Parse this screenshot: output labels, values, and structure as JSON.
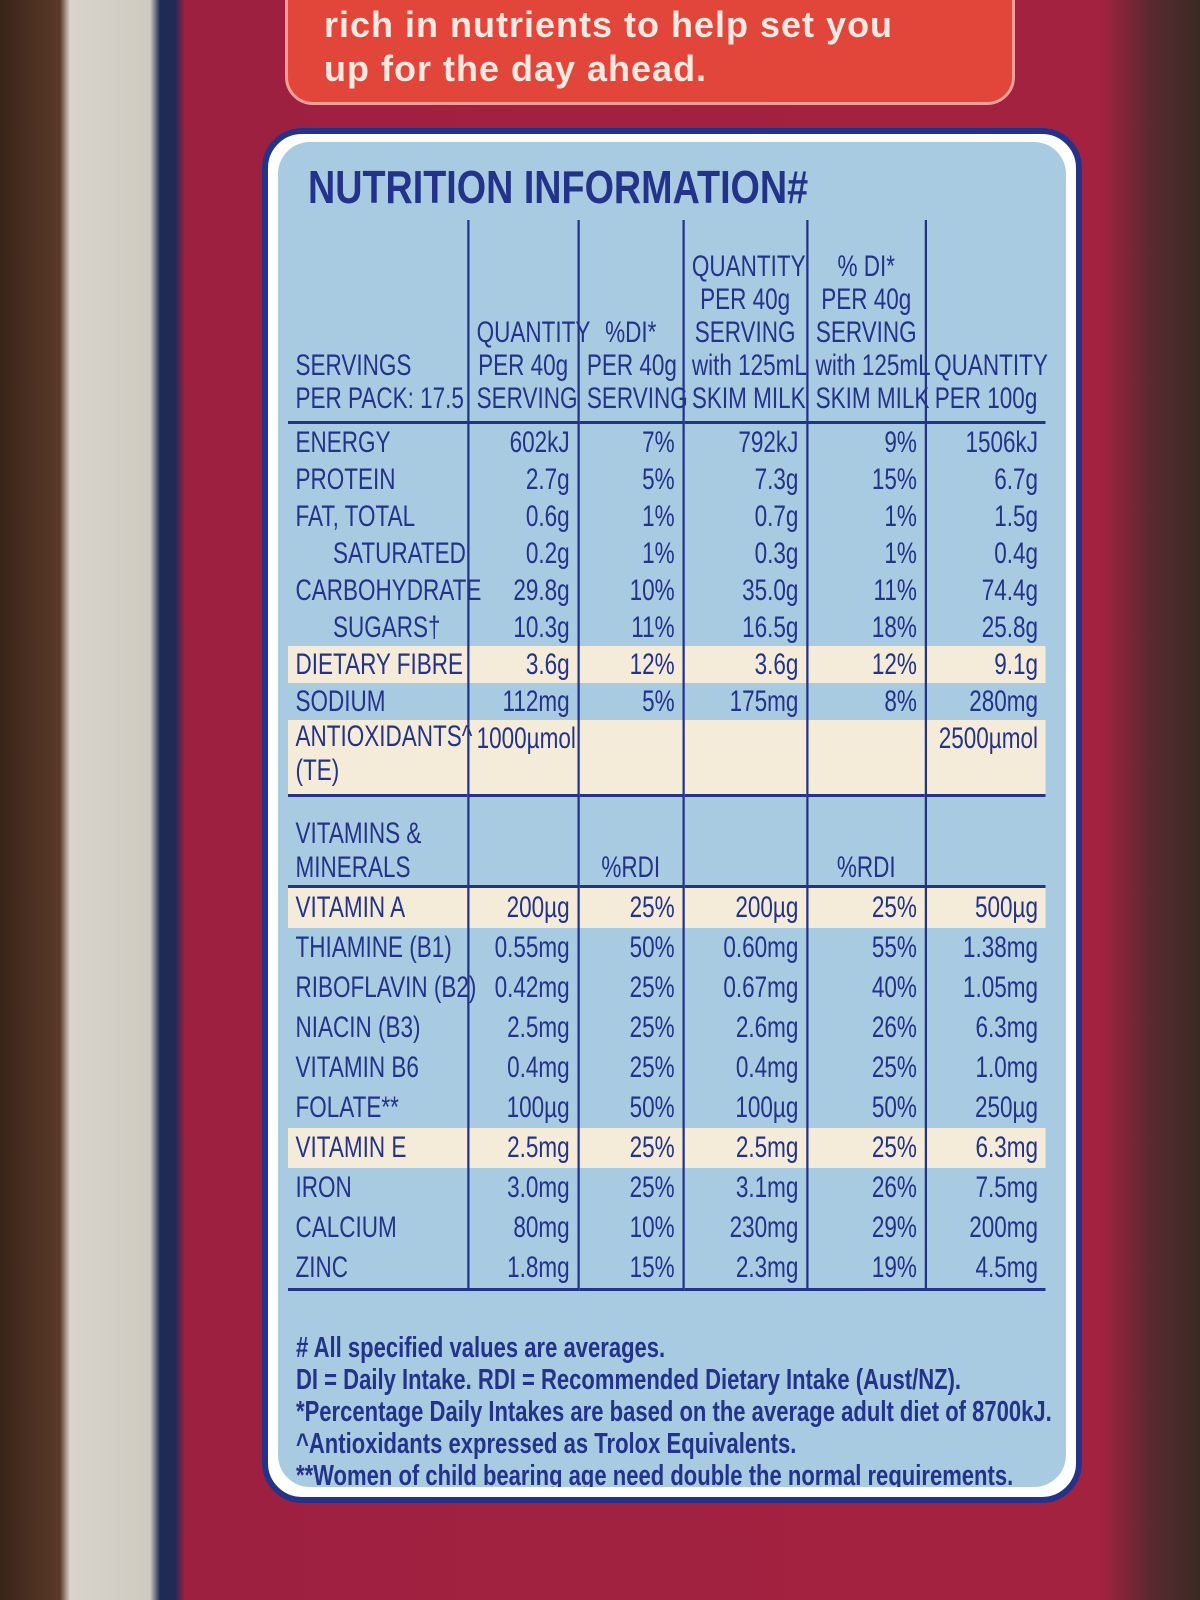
{
  "banner": {
    "lines": [
      "rich in nutrients to help set you",
      "up for the day ahead."
    ]
  },
  "title": "NUTRITION INFORMATION#",
  "table": {
    "header": [
      [
        "SERVINGS",
        "PER PACK: 17.5"
      ],
      [
        "QUANTITY",
        "PER 40g",
        "SERVING"
      ],
      [
        "%DI*",
        "PER 40g",
        "SERVING"
      ],
      [
        "QUANTITY",
        "PER 40g",
        "SERVING",
        "with 125mL",
        "SKIM MILK"
      ],
      [
        "% DI*",
        "PER 40g",
        "SERVING",
        "with 125mL",
        "SKIM MILK"
      ],
      [
        "QUANTITY",
        "PER 100g"
      ]
    ],
    "nutrients": [
      [
        "ENERGY",
        "602kJ",
        "7%",
        "792kJ",
        "9%",
        "1506kJ"
      ],
      [
        "PROTEIN",
        "2.7g",
        "5%",
        "7.3g",
        "15%",
        "6.7g"
      ],
      [
        "FAT, TOTAL",
        "0.6g",
        "1%",
        "0.7g",
        "1%",
        "1.5g"
      ],
      [
        "SATURATED",
        "0.2g",
        "1%",
        "0.3g",
        "1%",
        "0.4g"
      ],
      [
        "CARBOHYDRATE",
        "29.8g",
        "10%",
        "35.0g",
        "11%",
        "74.4g"
      ],
      [
        "SUGARS†",
        "10.3g",
        "11%",
        "16.5g",
        "18%",
        "25.8g"
      ],
      [
        "DIETARY FIBRE",
        "3.6g",
        "12%",
        "3.6g",
        "12%",
        "9.1g"
      ],
      [
        "SODIUM",
        "112mg",
        "5%",
        "175mg",
        "8%",
        "280mg"
      ],
      [
        "ANTIOXIDANTS^ (TE)",
        "1000µmol",
        null,
        null,
        null,
        "2500µmol"
      ]
    ],
    "vitamins_header": [
      "VITAMINS & MINERALS",
      null,
      "%RDI",
      null,
      "%RDI",
      null
    ],
    "vitamins": [
      [
        "VITAMIN A",
        "200µg",
        "25%",
        "200µg",
        "25%",
        "500µg"
      ],
      [
        "THIAMINE (B1)",
        "0.55mg",
        "50%",
        "0.60mg",
        "55%",
        "1.38mg"
      ],
      [
        "RIBOFLAVIN (B2)",
        "0.42mg",
        "25%",
        "0.67mg",
        "40%",
        "1.05mg"
      ],
      [
        "NIACIN (B3)",
        "2.5mg",
        "25%",
        "2.6mg",
        "26%",
        "6.3mg"
      ],
      [
        "VITAMIN B6",
        "0.4mg",
        "25%",
        "0.4mg",
        "25%",
        "1.0mg"
      ],
      [
        "FOLATE**",
        "100µg",
        "50%",
        "100µg",
        "50%",
        "250µg"
      ],
      [
        "VITAMIN E",
        "2.5mg",
        "25%",
        "2.5mg",
        "25%",
        "6.3mg"
      ],
      [
        "IRON",
        "3.0mg",
        "25%",
        "3.1mg",
        "26%",
        "7.5mg"
      ],
      [
        "CALCIUM",
        "80mg",
        "10%",
        "230mg",
        "29%",
        "200mg"
      ],
      [
        "ZINC",
        "1.8mg",
        "15%",
        "2.3mg",
        "19%",
        "4.5mg"
      ]
    ]
  },
  "footnotes": [
    "# All specified values are averages.",
    "DI = Daily Intake. RDI = Recommended Dietary Intake (Aust/NZ).",
    "*Percentage Daily Intakes are based on the average adult diet of 8700kJ.",
    "^Antioxidants expressed as Trolox Equivalents.",
    "**Women of child bearing age need double the normal requirements."
  ]
}
